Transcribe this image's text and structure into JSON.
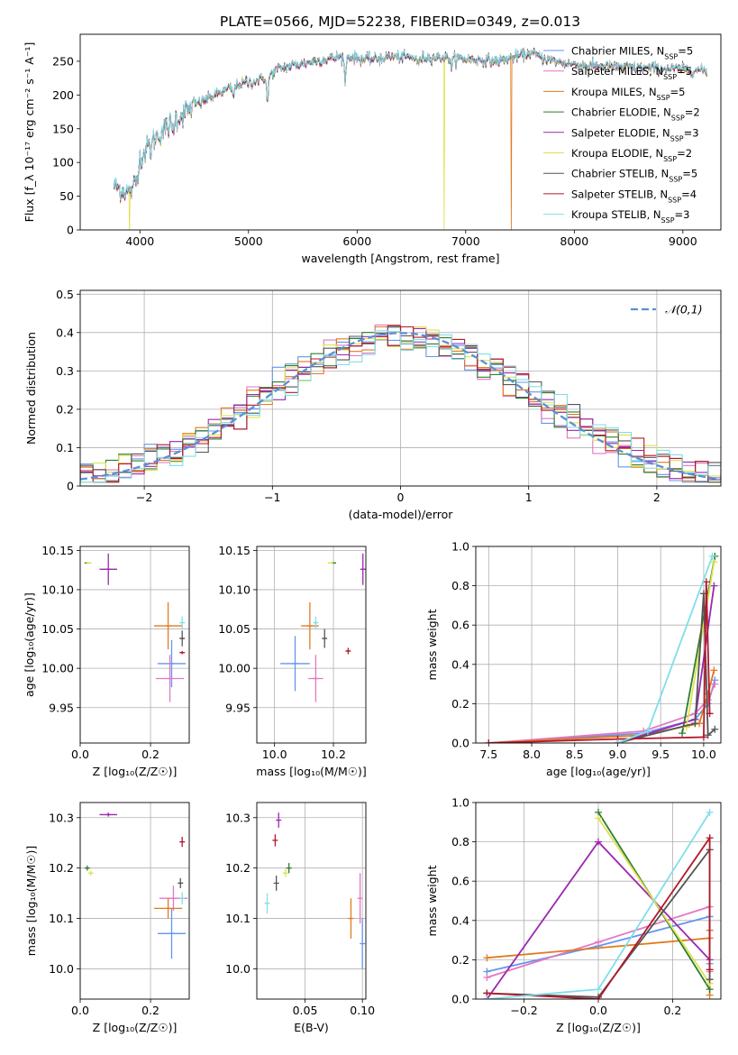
{
  "figure": {
    "title": "PLATE=0566, MJD=52238, FIBERID=0349, z=0.013"
  },
  "colors": {
    "Chabrier MILES": "#6495ed",
    "Salpeter MILES": "#e377c2",
    "Kroupa MILES": "#e07b20",
    "Chabrier ELODIE": "#2e7d32",
    "Salpeter ELODIE": "#9c27b0",
    "Kroupa ELODIE": "#dde24c",
    "Chabrier STELIB": "#555555",
    "Salpeter STELIB": "#b2182b",
    "Kroupa STELIB": "#80deea",
    "normal": "#5b8fd6"
  },
  "models": [
    {
      "name": "Chabrier MILES",
      "imf": "Chabrier",
      "lib": "MILES",
      "nssp": 5
    },
    {
      "name": "Salpeter MILES",
      "imf": "Salpeter",
      "lib": "MILES",
      "nssp": 5
    },
    {
      "name": "Kroupa MILES",
      "imf": "Kroupa",
      "lib": "MILES",
      "nssp": 5
    },
    {
      "name": "Chabrier ELODIE",
      "imf": "Chabrier",
      "lib": "ELODIE",
      "nssp": 2
    },
    {
      "name": "Salpeter ELODIE",
      "imf": "Salpeter",
      "lib": "ELODIE",
      "nssp": 3
    },
    {
      "name": "Kroupa ELODIE",
      "imf": "Kroupa",
      "lib": "ELODIE",
      "nssp": 2
    },
    {
      "name": "Chabrier STELIB",
      "imf": "Chabrier",
      "lib": "STELIB",
      "nssp": 5
    },
    {
      "name": "Salpeter STELIB",
      "imf": "Salpeter",
      "lib": "STELIB",
      "nssp": 4
    },
    {
      "name": "Kroupa STELIB",
      "imf": "Kroupa",
      "lib": "STELIB",
      "nssp": 3
    }
  ],
  "chart_data": [
    {
      "type": "line",
      "id": "spectrum",
      "xlabel": "wavelength [Angstrom, rest frame]",
      "ylabel": "Flux [f_λ 10⁻¹⁷ erg cm⁻² s⁻¹ A⁻¹]",
      "xlim": [
        3450,
        9350
      ],
      "ylim": [
        0,
        290
      ],
      "xticks": [
        4000,
        5000,
        6000,
        7000,
        8000,
        9000
      ],
      "yticks": [
        0,
        50,
        100,
        150,
        200,
        250
      ],
      "legend": "top-right",
      "continuum_anchors": [
        [
          3760,
          65
        ],
        [
          3900,
          55
        ],
        [
          4000,
          105
        ],
        [
          4100,
          130
        ],
        [
          4300,
          160
        ],
        [
          4500,
          185
        ],
        [
          4700,
          200
        ],
        [
          4900,
          215
        ],
        [
          5100,
          222
        ],
        [
          5300,
          240
        ],
        [
          5600,
          250
        ],
        [
          5900,
          258
        ],
        [
          6100,
          252
        ],
        [
          6300,
          257
        ],
        [
          6550,
          255
        ],
        [
          6700,
          256
        ],
        [
          6900,
          255
        ],
        [
          7100,
          252
        ],
        [
          7300,
          250
        ],
        [
          7600,
          262
        ],
        [
          7800,
          250
        ],
        [
          8000,
          245
        ],
        [
          8300,
          242
        ],
        [
          8600,
          240
        ],
        [
          9000,
          238
        ],
        [
          9200,
          236
        ]
      ],
      "absorption_lines": [
        [
          3934,
          20
        ],
        [
          3969,
          18
        ],
        [
          4102,
          12
        ],
        [
          4300,
          14
        ],
        [
          4861,
          14
        ],
        [
          5175,
          40
        ],
        [
          5890,
          35
        ],
        [
          6563,
          10
        ],
        [
          6870,
          15
        ]
      ],
      "spikes": [
        [
          6800,
          "Kroupa ELODIE"
        ],
        [
          7420,
          "Kroupa MILES"
        ],
        [
          3905,
          "Kroupa ELODIE"
        ]
      ],
      "x_range": [
        3760,
        9220
      ]
    },
    {
      "type": "bar",
      "id": "residuals",
      "style": "step",
      "xlabel": "(data-model)/error",
      "ylabel": "Normed distribution",
      "xlim": [
        -2.5,
        2.5
      ],
      "ylim": [
        0,
        0.51
      ],
      "xticks": [
        -2,
        -1,
        0,
        1,
        2
      ],
      "yticks": [
        0,
        0.1,
        0.2,
        0.3,
        0.4,
        0.5
      ],
      "bin_width": 0.1,
      "legend_label": "𝒩(0,1)",
      "legend": "top-right"
    },
    {
      "type": "scatter",
      "id": "age_vs_Z",
      "xlabel": "Z [log₁₀(Z/Z☉)]",
      "ylabel": "age  [log₁₀(age/yr)]",
      "xlim": [
        0,
        0.31
      ],
      "ylim": [
        9.905,
        10.155
      ],
      "xticks": [
        0,
        0.2
      ],
      "yticks": [
        9.95,
        10.0,
        10.05,
        10.1,
        10.15
      ],
      "points": [
        {
          "model": "Chabrier MILES",
          "x": 0.26,
          "y": 10.006,
          "xerr": 0.04,
          "yerr": 0.03
        },
        {
          "model": "Salpeter MILES",
          "x": 0.255,
          "y": 9.987,
          "xerr": 0.04,
          "yerr": 0.03
        },
        {
          "model": "Kroupa MILES",
          "x": 0.25,
          "y": 10.054,
          "xerr": 0.04,
          "yerr": 0.03
        },
        {
          "model": "Chabrier ELODIE",
          "x": 0.02,
          "y": 10.134,
          "xerr": 0.003,
          "yerr": 0.001
        },
        {
          "model": "Salpeter ELODIE",
          "x": 0.08,
          "y": 10.126,
          "xerr": 0.025,
          "yerr": 0.02
        },
        {
          "model": "Kroupa ELODIE",
          "x": 0.025,
          "y": 10.134,
          "xerr": 0.005,
          "yerr": 0.001
        },
        {
          "model": "Chabrier STELIB",
          "x": 0.29,
          "y": 10.038,
          "xerr": 0.006,
          "yerr": 0.01
        },
        {
          "model": "Salpeter STELIB",
          "x": 0.29,
          "y": 10.02,
          "xerr": 0.003,
          "yerr": 0.002
        },
        {
          "model": "Kroupa STELIB",
          "x": 0.29,
          "y": 10.058,
          "xerr": 0.002,
          "yerr": 0.008
        }
      ]
    },
    {
      "type": "scatter",
      "id": "age_vs_mass",
      "xlabel": "mass [log₁₀(M/M☉)]",
      "ylabel": "",
      "xlim": [
        9.94,
        10.31
      ],
      "ylim": [
        9.905,
        10.155
      ],
      "xticks": [
        10.0,
        10.2
      ],
      "yticks": [
        9.95,
        10.0,
        10.05,
        10.1,
        10.15
      ],
      "points": [
        {
          "model": "Chabrier MILES",
          "x": 10.07,
          "y": 10.006,
          "xerr": 0.05,
          "yerr": 0.035
        },
        {
          "model": "Salpeter MILES",
          "x": 10.14,
          "y": 9.987,
          "xerr": 0.025,
          "yerr": 0.03
        },
        {
          "model": "Kroupa MILES",
          "x": 10.12,
          "y": 10.054,
          "xerr": 0.03,
          "yerr": 0.03
        },
        {
          "model": "Chabrier ELODIE",
          "x": 10.2,
          "y": 10.134,
          "xerr": 0.004,
          "yerr": 0.001
        },
        {
          "model": "Salpeter ELODIE",
          "x": 10.3,
          "y": 10.126,
          "xerr": 0.004,
          "yerr": 0.02
        },
        {
          "model": "Kroupa ELODIE",
          "x": 10.19,
          "y": 10.134,
          "xerr": 0.004,
          "yerr": 0.001
        },
        {
          "model": "Chabrier STELIB",
          "x": 10.17,
          "y": 10.038,
          "xerr": 0.005,
          "yerr": 0.012
        },
        {
          "model": "Salpeter STELIB",
          "x": 10.25,
          "y": 10.022,
          "xerr": 0.005,
          "yerr": 0.004
        },
        {
          "model": "Kroupa STELIB",
          "x": 10.14,
          "y": 10.058,
          "xerr": 0.005,
          "yerr": 0.008
        }
      ]
    },
    {
      "type": "line",
      "id": "weight_vs_age",
      "xlabel": "age  [log₁₀(age/yr)]",
      "ylabel": "mass weight",
      "xlim": [
        7.35,
        10.2
      ],
      "ylim": [
        0,
        1.0
      ],
      "xticks": [
        7.5,
        8.0,
        8.5,
        9.0,
        9.5,
        10.0
      ],
      "yticks": [
        0,
        0.2,
        0.4,
        0.6,
        0.8,
        1.0
      ],
      "series": [
        {
          "model": "Chabrier MILES",
          "points": [
            [
              7.5,
              0.0
            ],
            [
              9.3,
              0.05
            ],
            [
              9.9,
              0.12
            ],
            [
              10.05,
              0.2
            ],
            [
              10.13,
              0.32
            ]
          ]
        },
        {
          "model": "Salpeter MILES",
          "points": [
            [
              7.5,
              0.0
            ],
            [
              9.3,
              0.06
            ],
            [
              9.9,
              0.15
            ],
            [
              10.05,
              0.22
            ],
            [
              10.13,
              0.3
            ]
          ]
        },
        {
          "model": "Kroupa MILES",
          "points": [
            [
              7.5,
              0.0
            ],
            [
              9.3,
              0.04
            ],
            [
              9.95,
              0.1
            ],
            [
              10.05,
              0.25
            ],
            [
              10.12,
              0.37
            ]
          ]
        },
        {
          "model": "Chabrier ELODIE",
          "points": [
            [
              9.75,
              0.05
            ],
            [
              10.13,
              0.95
            ]
          ]
        },
        {
          "model": "Salpeter ELODIE",
          "points": [
            [
              9.0,
              0.0
            ],
            [
              9.9,
              0.12
            ],
            [
              10.12,
              0.8
            ]
          ]
        },
        {
          "model": "Kroupa ELODIE",
          "points": [
            [
              9.8,
              0.08
            ],
            [
              10.12,
              0.92
            ]
          ]
        },
        {
          "model": "Chabrier STELIB",
          "points": [
            [
              9.0,
              0.0
            ],
            [
              9.9,
              0.1
            ],
            [
              10.0,
              0.76
            ],
            [
              10.05,
              0.04
            ],
            [
              10.13,
              0.07
            ]
          ]
        },
        {
          "model": "Salpeter STELIB",
          "points": [
            [
              7.5,
              0.0
            ],
            [
              9.0,
              0.02
            ],
            [
              10.0,
              0.03
            ],
            [
              10.03,
              0.82
            ],
            [
              10.07,
              0.15
            ]
          ]
        },
        {
          "model": "Kroupa STELIB",
          "points": [
            [
              9.0,
              0.0
            ],
            [
              9.35,
              0.06
            ],
            [
              10.1,
              0.95
            ]
          ]
        }
      ]
    },
    {
      "type": "scatter",
      "id": "mass_vs_Z",
      "xlabel": "Z [log₁₀(Z/Z☉)]",
      "ylabel": "mass [log₁₀(M/M☉)]",
      "xlim": [
        0,
        0.31
      ],
      "ylim": [
        9.94,
        10.33
      ],
      "xticks": [
        0,
        0.2
      ],
      "yticks": [
        10.0,
        10.1,
        10.2,
        10.3
      ],
      "points": [
        {
          "model": "Chabrier MILES",
          "x": 0.26,
          "y": 10.07,
          "xerr": 0.04,
          "yerr": 0.05
        },
        {
          "model": "Salpeter MILES",
          "x": 0.265,
          "y": 10.14,
          "xerr": 0.04,
          "yerr": 0.025
        },
        {
          "model": "Kroupa MILES",
          "x": 0.25,
          "y": 10.12,
          "xerr": 0.04,
          "yerr": 0.02
        },
        {
          "model": "Chabrier ELODIE",
          "x": 0.02,
          "y": 10.2,
          "xerr": 0.004,
          "yerr": 0.005
        },
        {
          "model": "Salpeter ELODIE",
          "x": 0.08,
          "y": 10.306,
          "xerr": 0.025,
          "yerr": 0.004
        },
        {
          "model": "Kroupa ELODIE",
          "x": 0.03,
          "y": 10.19,
          "xerr": 0.003,
          "yerr": 0.005
        },
        {
          "model": "Chabrier STELIB",
          "x": 0.285,
          "y": 10.17,
          "xerr": 0.006,
          "yerr": 0.01
        },
        {
          "model": "Salpeter STELIB",
          "x": 0.29,
          "y": 10.252,
          "xerr": 0.003,
          "yerr": 0.01
        },
        {
          "model": "Kroupa STELIB",
          "x": 0.29,
          "y": 10.14,
          "xerr": 0.003,
          "yerr": 0.012
        }
      ]
    },
    {
      "type": "scatter",
      "id": "mass_vs_ebv",
      "xlabel": "E(B-V)",
      "ylabel": "",
      "xlim": [
        0.008,
        0.103
      ],
      "ylim": [
        9.94,
        10.33
      ],
      "xticks": [
        0.05,
        0.1
      ],
      "yticks": [
        10.0,
        10.1,
        10.2,
        10.3
      ],
      "points": [
        {
          "model": "Chabrier MILES",
          "x": 0.1,
          "y": 10.05,
          "xerr": 0.0,
          "yerr": 0.05
        },
        {
          "model": "Salpeter MILES",
          "x": 0.098,
          "y": 10.14,
          "xerr": 0.0,
          "yerr": 0.05
        },
        {
          "model": "Kroupa MILES",
          "x": 0.09,
          "y": 10.1,
          "xerr": 0.0,
          "yerr": 0.04
        },
        {
          "model": "Chabrier ELODIE",
          "x": 0.036,
          "y": 10.2,
          "xerr": 0.0,
          "yerr": 0.01
        },
        {
          "model": "Salpeter ELODIE",
          "x": 0.027,
          "y": 10.295,
          "xerr": 0.0,
          "yerr": 0.015
        },
        {
          "model": "Kroupa ELODIE",
          "x": 0.033,
          "y": 10.19,
          "xerr": 0.0,
          "yerr": 0.008
        },
        {
          "model": "Chabrier STELIB",
          "x": 0.025,
          "y": 10.17,
          "xerr": 0.0,
          "yerr": 0.015
        },
        {
          "model": "Salpeter STELIB",
          "x": 0.024,
          "y": 10.255,
          "xerr": 0.0,
          "yerr": 0.012
        },
        {
          "model": "Kroupa STELIB",
          "x": 0.017,
          "y": 10.13,
          "xerr": 0.0,
          "yerr": 0.02
        }
      ]
    },
    {
      "type": "line",
      "id": "weight_vs_Z",
      "xlabel": "Z [log₁₀(Z/Z☉)]",
      "ylabel": "mass weight",
      "xlim": [
        -0.33,
        0.33
      ],
      "ylim": [
        0,
        1.0
      ],
      "xticks": [
        -0.2,
        0.0,
        0.2
      ],
      "yticks": [
        0,
        0.2,
        0.4,
        0.6,
        0.8,
        1.0
      ],
      "series": [
        {
          "model": "Chabrier MILES",
          "points": [
            [
              -0.3,
              0.14
            ],
            [
              0.0,
              0.27
            ],
            [
              0.3,
              0.42
            ],
            [
              0.3,
              0.18
            ]
          ]
        },
        {
          "model": "Salpeter MILES",
          "points": [
            [
              -0.3,
              0.11
            ],
            [
              0.0,
              0.29
            ],
            [
              0.3,
              0.47
            ],
            [
              0.3,
              0.14
            ]
          ]
        },
        {
          "model": "Kroupa MILES",
          "points": [
            [
              -0.3,
              0.21
            ],
            [
              0.3,
              0.31
            ],
            [
              0.3,
              0.02
            ],
            [
              0.3,
              0.35
            ]
          ]
        },
        {
          "model": "Chabrier ELODIE",
          "points": [
            [
              0.0,
              0.95
            ],
            [
              0.3,
              0.05
            ]
          ]
        },
        {
          "model": "Salpeter ELODIE",
          "points": [
            [
              -0.3,
              0.0
            ],
            [
              0.0,
              0.8
            ],
            [
              0.3,
              0.2
            ]
          ]
        },
        {
          "model": "Kroupa ELODIE",
          "points": [
            [
              0.0,
              0.92
            ],
            [
              0.3,
              0.08
            ]
          ]
        },
        {
          "model": "Chabrier STELIB",
          "points": [
            [
              -0.3,
              0.03
            ],
            [
              0.0,
              0.01
            ],
            [
              0.3,
              0.76
            ],
            [
              0.3,
              0.1
            ]
          ]
        },
        {
          "model": "Salpeter STELIB",
          "points": [
            [
              -0.3,
              0.03
            ],
            [
              0.0,
              0.0
            ],
            [
              0.3,
              0.82
            ],
            [
              0.3,
              0.15
            ]
          ]
        },
        {
          "model": "Kroupa STELIB",
          "points": [
            [
              -0.3,
              0.0
            ],
            [
              0.0,
              0.05
            ],
            [
              0.3,
              0.95
            ]
          ]
        }
      ]
    }
  ]
}
